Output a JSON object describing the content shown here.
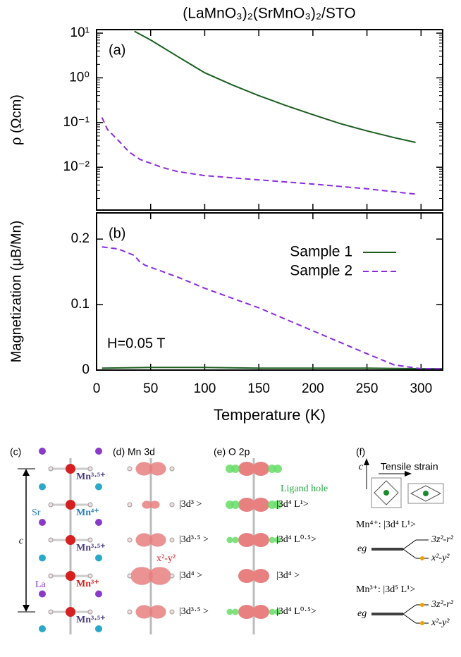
{
  "chart_data": [
    {
      "type": "line",
      "title": "(LaMnO₃)₂(SrMnO₃)₂/STO",
      "panel_label": "(a)",
      "ylabel": "ρ (Ωcm)",
      "log_y": true,
      "xlim": [
        0,
        320
      ],
      "xticks": [
        0,
        50,
        100,
        150,
        200,
        250,
        300
      ],
      "xtick_labels": false,
      "ylim": [
        0.0011,
        12
      ],
      "yticks": [
        {
          "value": 0.01,
          "label": "10⁻²"
        },
        {
          "value": 0.1,
          "label": "10⁻¹"
        },
        {
          "value": 1,
          "label": "10⁰"
        },
        {
          "value": 10,
          "label": "10¹"
        }
      ],
      "series": [
        {
          "name": "Sample 1",
          "color": "#1b5e20",
          "dash": false,
          "x": [
            35,
            50,
            75,
            100,
            125,
            150,
            175,
            200,
            225,
            250,
            275,
            295
          ],
          "values": [
            11,
            7,
            3,
            1.3,
            0.7,
            0.4,
            0.24,
            0.15,
            0.095,
            0.065,
            0.046,
            0.036
          ]
        },
        {
          "name": "Sample 2",
          "color": "#8a2be2",
          "dash": true,
          "x": [
            5,
            10,
            20,
            30,
            40,
            60,
            75,
            100,
            150,
            200,
            250,
            295
          ],
          "values": [
            0.13,
            0.07,
            0.04,
            0.022,
            0.015,
            0.01,
            0.008,
            0.0065,
            0.0052,
            0.0042,
            0.0033,
            0.0025
          ]
        }
      ]
    },
    {
      "type": "line",
      "panel_label": "(b)",
      "annotation": "H=0.05 T",
      "ylabel": "Magnetization (μB/Mn)",
      "xlabel": "Temperature (K)",
      "log_y": false,
      "xlim": [
        0,
        320
      ],
      "xticks": [
        0,
        50,
        100,
        150,
        200,
        250,
        300
      ],
      "xtick_labels": true,
      "ylim": [
        0,
        0.24
      ],
      "yticks": [
        0,
        0.1,
        0.2
      ],
      "legend": "upper right",
      "series": [
        {
          "name": "Sample 1",
          "color": "#1b5e20",
          "dash": false,
          "x": [
            5,
            50,
            100,
            150,
            200,
            250,
            300,
            320
          ],
          "values": [
            0.003,
            0.004,
            0.004,
            0.003,
            0.003,
            0.003,
            0.002,
            0.002
          ]
        },
        {
          "name": "Sample 2",
          "color": "#8a2be2",
          "dash": true,
          "x": [
            5,
            20,
            35,
            40,
            45,
            75,
            100,
            150,
            200,
            250,
            275,
            300,
            320
          ],
          "values": [
            0.188,
            0.185,
            0.175,
            0.165,
            0.16,
            0.142,
            0.125,
            0.095,
            0.06,
            0.025,
            0.008,
            0.002,
            0.002
          ]
        }
      ]
    }
  ],
  "diagram": {
    "c": {
      "label": "(c)",
      "ions": [
        "Mn³·⁵⁺",
        "Mn⁴⁺",
        "Mn³·⁵⁺",
        "Mn³⁺",
        "Mn³·⁵⁺"
      ],
      "sr": "Sr",
      "la": "La",
      "axis": "c"
    },
    "d": {
      "label": "(d) Mn 3d",
      "configs": [
        "|3d³ >",
        "|3d³·⁵ >",
        "|3d⁴ >",
        "|3d³·⁵ >"
      ],
      "orbital": "x²-y²"
    },
    "e": {
      "label": "(e) O 2p",
      "ligand": "Ligand hole",
      "configs": [
        "|3d⁴ L¹>",
        "|3d⁴ L⁰·⁵>",
        "|3d⁴ >",
        "|3d⁴ L⁰·⁵>"
      ]
    },
    "f": {
      "label": "(f)",
      "axis": "c",
      "strain": "Tensile strain",
      "levels": [
        {
          "state": "Mn⁴⁺: |3d⁴ L¹>",
          "eg": "eg",
          "upper": "3z²-r²",
          "lower": "x²-y²"
        },
        {
          "state": "Mn³⁺: |3d⁵ L¹>",
          "eg": "eg",
          "upper": "3z²-r²",
          "lower": "x²-y²"
        }
      ]
    }
  }
}
